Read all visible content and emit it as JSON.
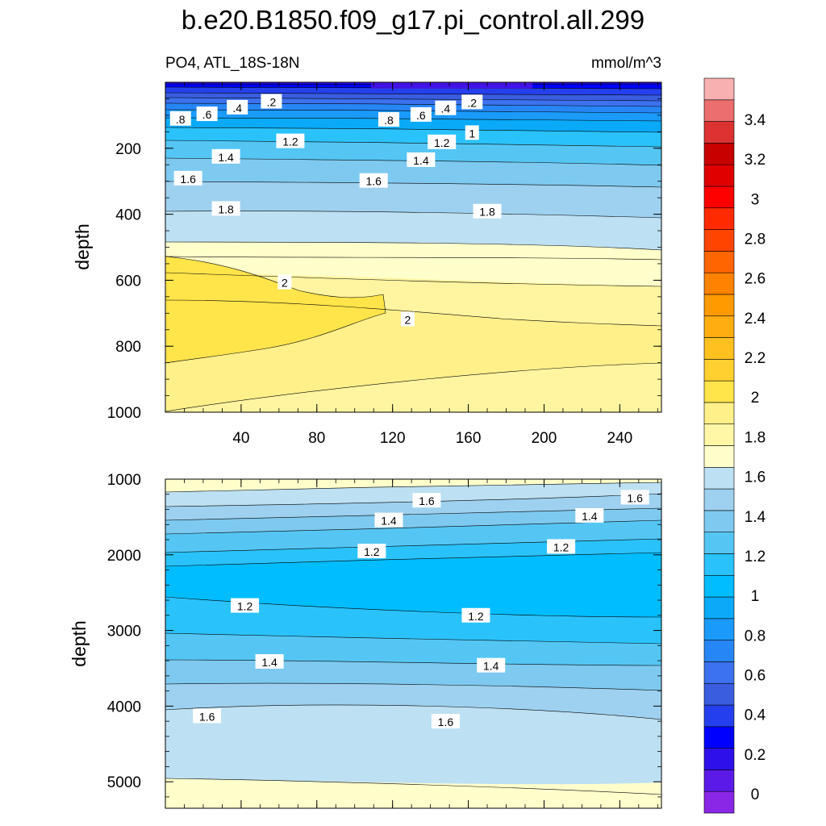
{
  "title": "b.e20.B1850.f09_g17.pi_control.all.299",
  "subtitle_left": "PO4, ATL_18S-18N",
  "subtitle_right": "mmol/m^3",
  "chart_data": [
    {
      "type": "contour",
      "panel": "upper",
      "variable": "PO4",
      "region": "ATL_18S-18N",
      "units": "mmol/m^3",
      "ylabel": "depth",
      "xlabel": "",
      "ylim": [
        0,
        1000
      ],
      "xlim": [
        0,
        262
      ],
      "x_ticks": [
        40,
        80,
        120,
        160,
        200,
        240
      ],
      "y_ticks": [
        200,
        400,
        600,
        800,
        1000
      ],
      "contour_labels": [
        {
          "text": ".8",
          "x": 8,
          "depth": 112
        },
        {
          "text": ".6",
          "x": 22,
          "depth": 98
        },
        {
          "text": ".4",
          "x": 38,
          "depth": 78
        },
        {
          "text": ".2",
          "x": 56,
          "depth": 60
        },
        {
          "text": ".8",
          "x": 118,
          "depth": 115
        },
        {
          "text": ".6",
          "x": 135,
          "depth": 100
        },
        {
          "text": ".4",
          "x": 148,
          "depth": 80
        },
        {
          "text": ".2",
          "x": 162,
          "depth": 62
        },
        {
          "text": "1",
          "x": 162,
          "depth": 155
        },
        {
          "text": "1.2",
          "x": 66,
          "depth": 180
        },
        {
          "text": "1.2",
          "x": 146,
          "depth": 183
        },
        {
          "text": "1.4",
          "x": 32,
          "depth": 227
        },
        {
          "text": "1.4",
          "x": 135,
          "depth": 237
        },
        {
          "text": "1.6",
          "x": 12,
          "depth": 293
        },
        {
          "text": "1.6",
          "x": 110,
          "depth": 300
        },
        {
          "text": "1.8",
          "x": 32,
          "depth": 385
        },
        {
          "text": "1.8",
          "x": 170,
          "depth": 393
        },
        {
          "text": "2",
          "x": 63,
          "depth": 608
        },
        {
          "text": "2",
          "x": 128,
          "depth": 720
        }
      ]
    },
    {
      "type": "contour",
      "panel": "lower",
      "variable": "PO4",
      "region": "ATL_18S-18N",
      "units": "mmol/m^3",
      "ylabel": "depth",
      "xlabel": "",
      "ylim": [
        1000,
        5350
      ],
      "xlim": [
        0,
        262
      ],
      "y_ticks": [
        1000,
        2000,
        3000,
        4000,
        5000
      ],
      "contour_labels": [
        {
          "text": "1.6",
          "x": 138,
          "depth": 1290
        },
        {
          "text": "1.6",
          "x": 248,
          "depth": 1250
        },
        {
          "text": "1.4",
          "x": 118,
          "depth": 1550
        },
        {
          "text": "1.4",
          "x": 224,
          "depth": 1490
        },
        {
          "text": "1.2",
          "x": 109,
          "depth": 1960
        },
        {
          "text": "1.2",
          "x": 209,
          "depth": 1900
        },
        {
          "text": "1.2",
          "x": 42,
          "depth": 2680
        },
        {
          "text": "1.2",
          "x": 164,
          "depth": 2810
        },
        {
          "text": "1.4",
          "x": 55,
          "depth": 3420
        },
        {
          "text": "1.4",
          "x": 172,
          "depth": 3470
        },
        {
          "text": "1.6",
          "x": 22,
          "depth": 4140
        },
        {
          "text": "1.6",
          "x": 148,
          "depth": 4210
        }
      ]
    }
  ],
  "colorbar": {
    "ticks": [
      "0",
      "0.2",
      "0.4",
      "0.6",
      "0.8",
      "1",
      "1.2",
      "1.4",
      "1.6",
      "1.8",
      "2",
      "2.2",
      "2.4",
      "2.6",
      "2.8",
      "3",
      "3.2",
      "3.4"
    ],
    "colors": [
      "#8a26e6",
      "#5b1ae8",
      "#2e10ea",
      "#0000ff",
      "#2440ee",
      "#3a5de0",
      "#3c71ef",
      "#2786f5",
      "#1a9afb",
      "#0aaaf8",
      "#00bdff",
      "#2ac2fa",
      "#55c6f4",
      "#7ec9ef",
      "#9ed1ef",
      "#bde0f2",
      "#ffffcc",
      "#fff6a6",
      "#fff08a",
      "#ffe44a",
      "#ffd030",
      "#ffc020",
      "#ffad10",
      "#ff9a00",
      "#ff8200",
      "#ff6500",
      "#ff4400",
      "#ff2a00",
      "#ff0000",
      "#e00000",
      "#c80000",
      "#dc3232",
      "#ec6e6e",
      "#f8b0b0"
    ]
  }
}
